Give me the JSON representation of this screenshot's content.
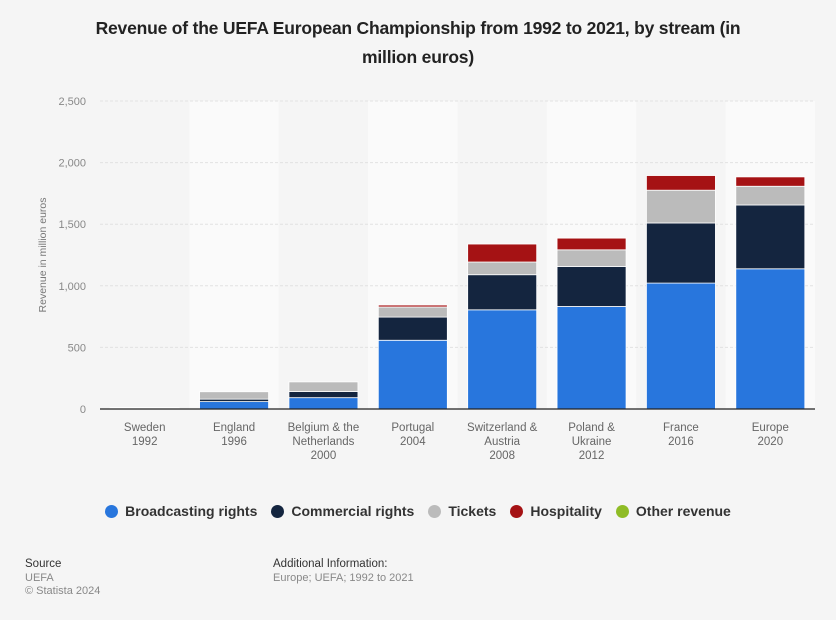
{
  "chart_data": {
    "type": "bar",
    "stacked": true,
    "title": "Revenue of the UEFA European Championship from 1992 to 2021, by stream (in million euros)",
    "title_lines": [
      "Revenue of the UEFA European Championship from 1992 to 2021, by stream (in",
      "million euros)"
    ],
    "xlabel": "",
    "ylabel": "Revenue in million euros",
    "ylim": [
      0,
      2500
    ],
    "yticks": [
      0,
      500,
      1000,
      1500,
      2000,
      2500
    ],
    "ytick_labels": [
      "0",
      "500",
      "1,000",
      "1,500",
      "2,000",
      "2,500"
    ],
    "grid": true,
    "legend_position": "bottom",
    "categories": [
      [
        "Sweden",
        "1992"
      ],
      [
        "England",
        "1996"
      ],
      [
        "Belgium & the",
        "Netherlands",
        "2000"
      ],
      [
        "Portugal",
        "2004"
      ],
      [
        "Switzerland &",
        "Austria",
        "2008"
      ],
      [
        "Poland &",
        "Ukraine",
        "2012"
      ],
      [
        "France",
        "2016"
      ],
      [
        "Europe",
        "2020"
      ]
    ],
    "series": [
      {
        "name": "Broadcasting rights",
        "color": "#2876dd",
        "values": [
          8,
          60,
          92,
          558,
          805,
          832,
          1022,
          1138
        ]
      },
      {
        "name": "Commercial rights",
        "color": "#14253f",
        "values": [
          2,
          20,
          50,
          188,
          285,
          325,
          488,
          518
        ]
      },
      {
        "name": "Tickets",
        "color": "#bbbbbb",
        "values": [
          3,
          60,
          78,
          82,
          103,
          135,
          266,
          152
        ]
      },
      {
        "name": "Hospitality",
        "color": "#a51214",
        "values": [
          0,
          0,
          0,
          16,
          146,
          95,
          119,
          76
        ]
      },
      {
        "name": "Other revenue",
        "color": "#8fbc26",
        "values": [
          0,
          0,
          0,
          0,
          0,
          0,
          0,
          0
        ]
      }
    ]
  },
  "footer": {
    "source_heading": "Source",
    "source_lines": [
      "UEFA",
      "© Statista 2024"
    ],
    "additional_heading": "Additional Information:",
    "additional_text": "Europe; UEFA; 1992 to 2021"
  }
}
